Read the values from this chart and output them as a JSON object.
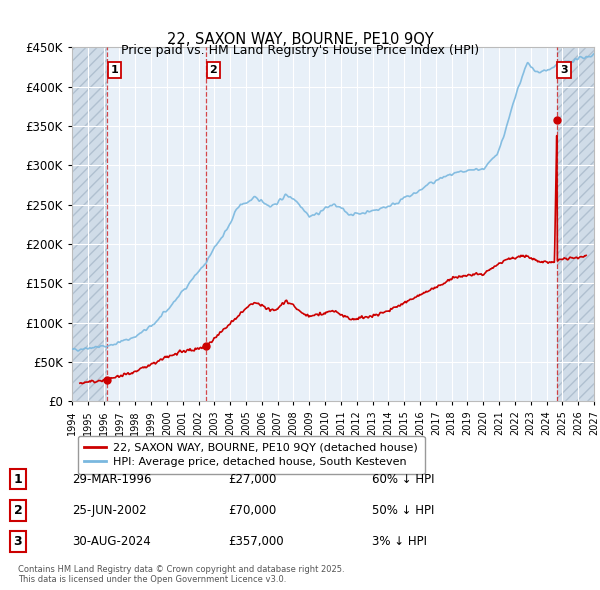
{
  "title": "22, SAXON WAY, BOURNE, PE10 9QY",
  "subtitle": "Price paid vs. HM Land Registry's House Price Index (HPI)",
  "sales": [
    {
      "date_num": 1996.24,
      "price": 27000,
      "label": "1"
    },
    {
      "date_num": 2002.48,
      "price": 70000,
      "label": "2"
    },
    {
      "date_num": 2024.66,
      "price": 357000,
      "label": "3"
    }
  ],
  "sale_dates_str": [
    "29-MAR-1996",
    "25-JUN-2002",
    "30-AUG-2024"
  ],
  "sale_prices_str": [
    "£27,000",
    "£70,000",
    "£357,000"
  ],
  "sale_hpi_str": [
    "60% ↓ HPI",
    "50% ↓ HPI",
    "3% ↓ HPI"
  ],
  "hpi_color": "#7ab8df",
  "sale_color": "#cc0000",
  "dashed_color": "#cc0000",
  "background_plot": "#e8f0f8",
  "background_hatch": "#d0dce8",
  "ylim": [
    0,
    450000
  ],
  "xlim_start": 1994.0,
  "xlim_end": 2027.0,
  "legend_label_sale": "22, SAXON WAY, BOURNE, PE10 9QY (detached house)",
  "legend_label_hpi": "HPI: Average price, detached house, South Kesteven",
  "footer": "Contains HM Land Registry data © Crown copyright and database right 2025.\nThis data is licensed under the Open Government Licence v3.0."
}
